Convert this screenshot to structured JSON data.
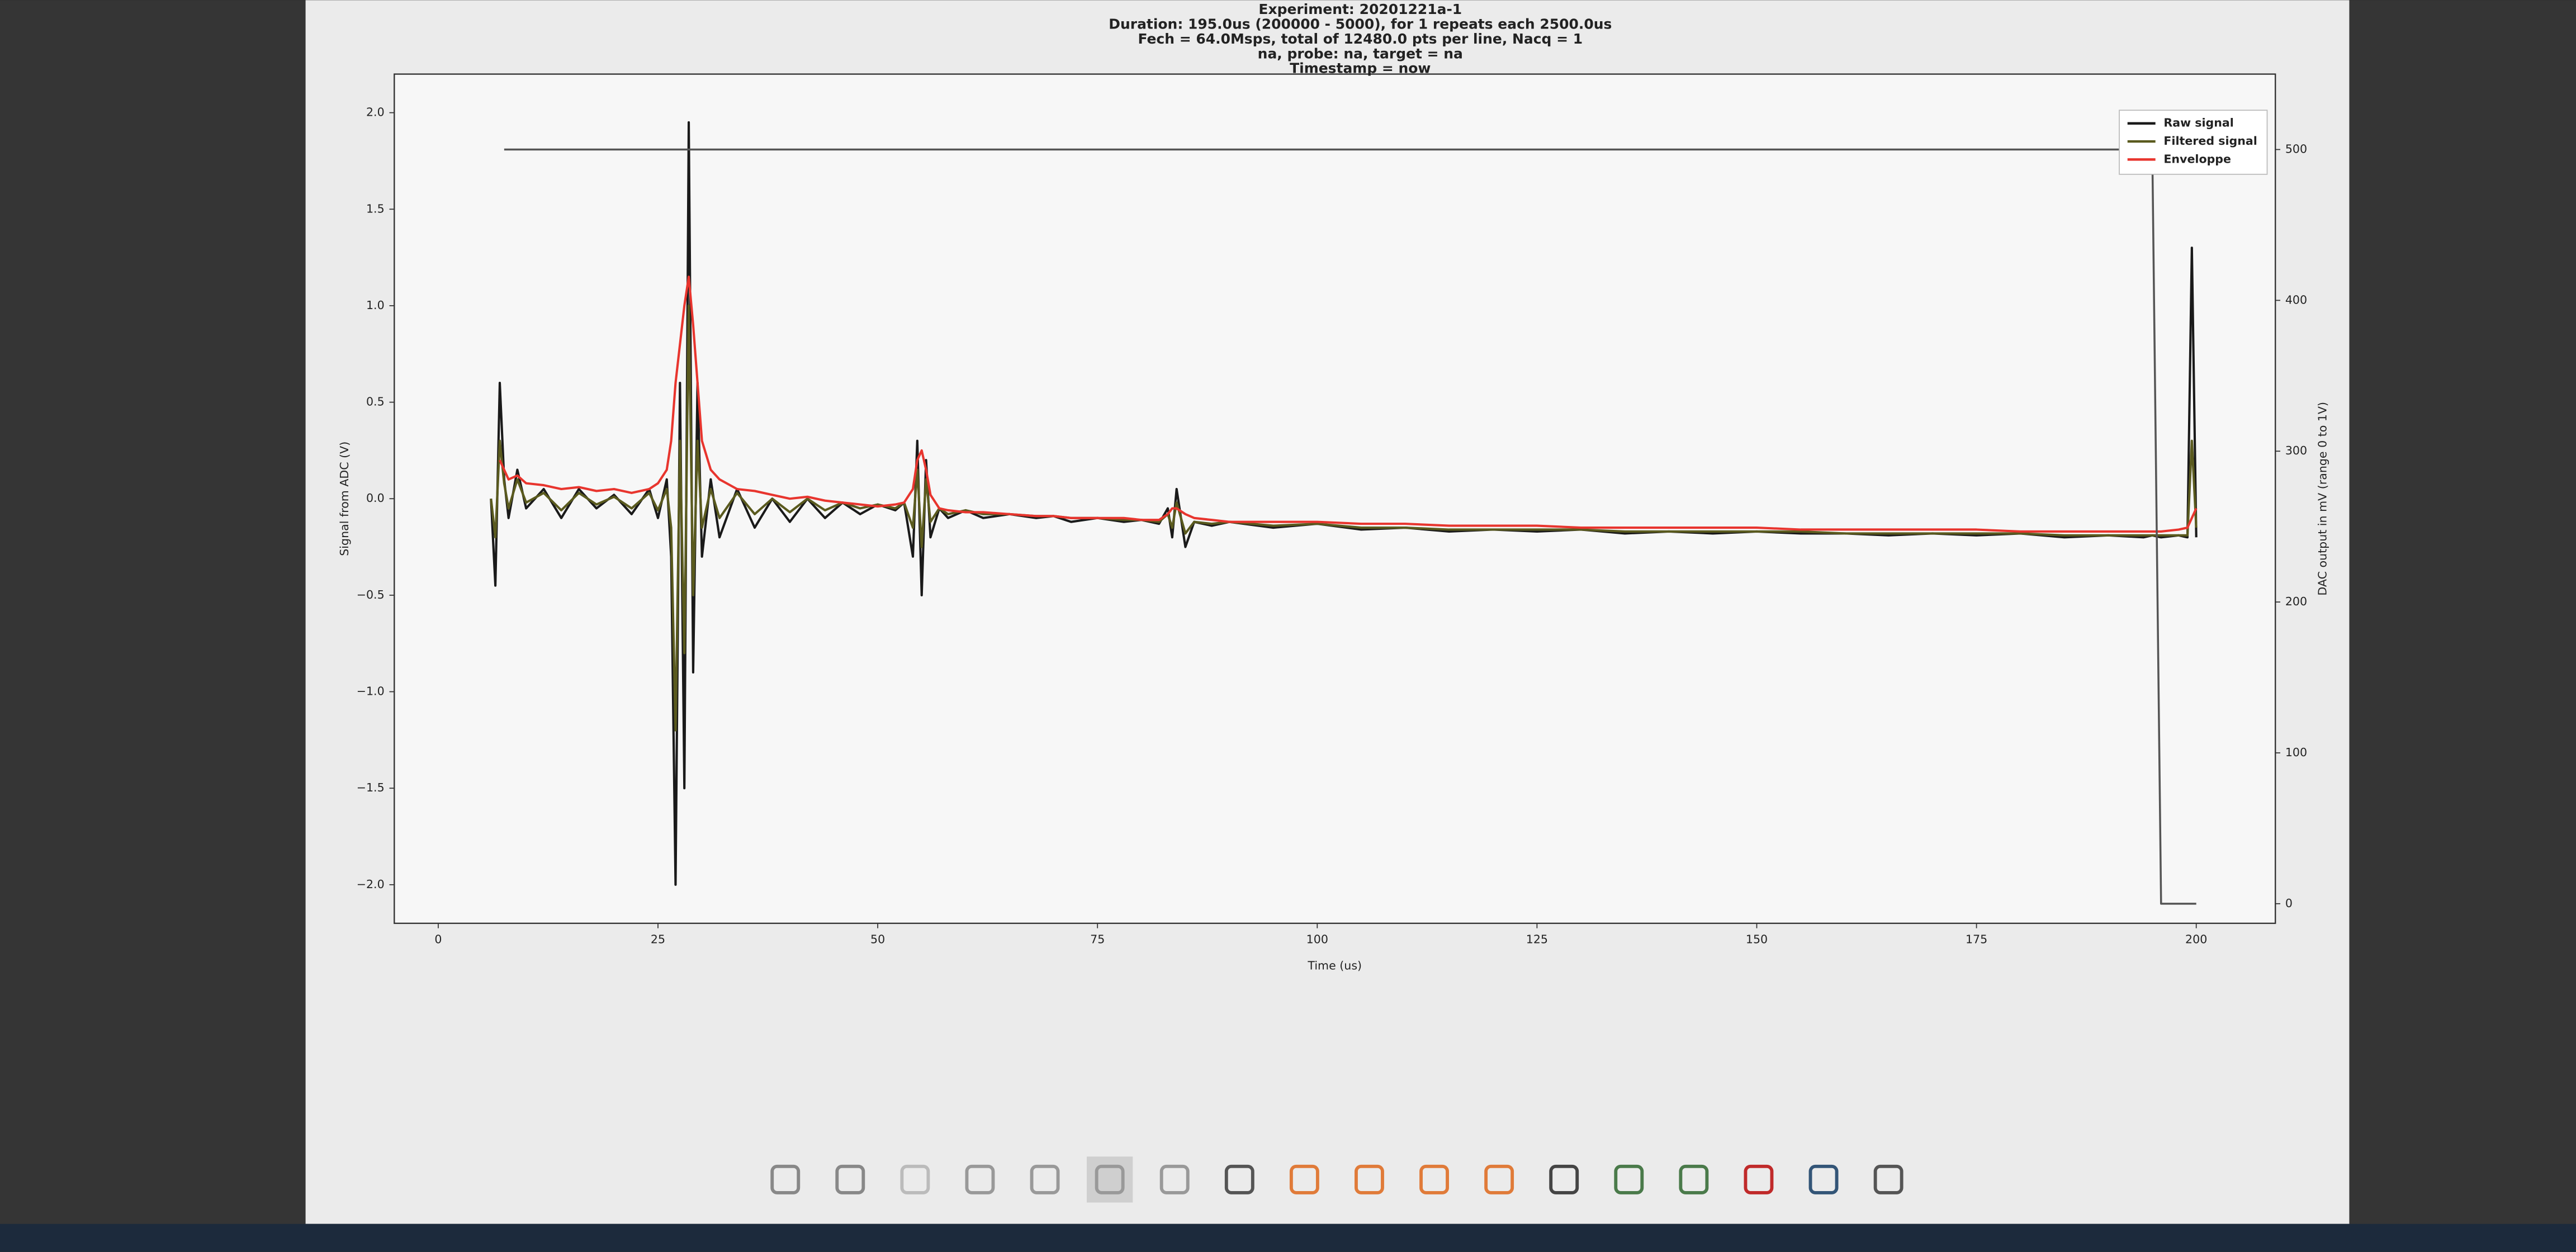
{
  "chart_data": {
    "type": "line",
    "title": [
      "Experiment: 20201221a-1",
      "Duration: 195.0us (200000 - 5000), for 1 repeats each 2500.0us",
      "Fech = 64.0Msps, total of 12480.0 pts per line, Nacq = 1",
      "na, probe: na, target = na",
      "Timestamp = now"
    ],
    "x_label": "Time (us)",
    "y_label": "Signal from ADC (V)",
    "y2_label": "DAC output in mV (range 0 to 1V)",
    "x": [
      6,
      6.5,
      7,
      7.5,
      8,
      9,
      10,
      12,
      14,
      16,
      18,
      20,
      22,
      24,
      25,
      26,
      26.5,
      27,
      27.5,
      28,
      28.5,
      29,
      29.5,
      30,
      31,
      32,
      34,
      36,
      38,
      40,
      42,
      44,
      46,
      48,
      50,
      52,
      53,
      54,
      54.5,
      55,
      55.5,
      56,
      57,
      58,
      60,
      62,
      65,
      68,
      70,
      72,
      75,
      78,
      80,
      82,
      83,
      83.5,
      84,
      85,
      86,
      88,
      90,
      95,
      100,
      105,
      110,
      115,
      120,
      125,
      130,
      135,
      140,
      145,
      150,
      155,
      160,
      165,
      170,
      175,
      180,
      185,
      190,
      194,
      195,
      196,
      198,
      199,
      199.5,
      200
    ],
    "series": [
      {
        "name": "Raw signal",
        "color": "#1a1a1a",
        "values": [
          0,
          -0.45,
          0.6,
          0.1,
          -0.1,
          0.15,
          -0.05,
          0.05,
          -0.1,
          0.05,
          -0.05,
          0.02,
          -0.08,
          0.05,
          -0.1,
          0.1,
          -0.3,
          -2.0,
          0.6,
          -1.5,
          1.95,
          -0.9,
          0.6,
          -0.3,
          0.1,
          -0.2,
          0.05,
          -0.15,
          0,
          -0.12,
          0,
          -0.1,
          -0.02,
          -0.08,
          -0.03,
          -0.06,
          -0.02,
          -0.3,
          0.3,
          -0.5,
          0.2,
          -0.2,
          -0.05,
          -0.1,
          -0.06,
          -0.1,
          -0.08,
          -0.1,
          -0.09,
          -0.12,
          -0.1,
          -0.12,
          -0.11,
          -0.13,
          -0.05,
          -0.2,
          0.05,
          -0.25,
          -0.12,
          -0.14,
          -0.12,
          -0.15,
          -0.13,
          -0.16,
          -0.15,
          -0.17,
          -0.16,
          -0.17,
          -0.16,
          -0.18,
          -0.17,
          -0.18,
          -0.17,
          -0.18,
          -0.18,
          -0.19,
          -0.18,
          -0.19,
          -0.18,
          -0.2,
          -0.19,
          -0.2,
          -0.19,
          -0.2,
          -0.19,
          -0.2,
          1.3,
          -0.2
        ]
      },
      {
        "name": "Filtered signal",
        "color": "#5a5a1e",
        "values": [
          0,
          -0.2,
          0.3,
          0.08,
          -0.05,
          0.1,
          -0.02,
          0.03,
          -0.06,
          0.03,
          -0.03,
          0.01,
          -0.05,
          0.03,
          -0.06,
          0.05,
          -0.15,
          -1.2,
          0.3,
          -0.8,
          1.0,
          -0.5,
          0.3,
          -0.15,
          0.05,
          -0.1,
          0.03,
          -0.08,
          0,
          -0.07,
          0,
          -0.06,
          -0.02,
          -0.05,
          -0.03,
          -0.05,
          -0.02,
          -0.15,
          0.15,
          -0.25,
          0.1,
          -0.12,
          -0.05,
          -0.08,
          -0.06,
          -0.08,
          -0.08,
          -0.09,
          -0.09,
          -0.1,
          -0.1,
          -0.11,
          -0.11,
          -0.12,
          -0.08,
          -0.15,
          -0.02,
          -0.18,
          -0.12,
          -0.13,
          -0.12,
          -0.14,
          -0.13,
          -0.15,
          -0.15,
          -0.16,
          -0.16,
          -0.16,
          -0.16,
          -0.17,
          -0.17,
          -0.17,
          -0.17,
          -0.17,
          -0.18,
          -0.18,
          -0.18,
          -0.18,
          -0.18,
          -0.19,
          -0.19,
          -0.19,
          -0.19,
          -0.19,
          -0.19,
          -0.19,
          0.3,
          -0.15
        ]
      },
      {
        "name": "Enveloppe",
        "color": "#e8352e",
        "values": [
          null,
          null,
          0.2,
          0.15,
          0.1,
          0.12,
          0.08,
          0.07,
          0.05,
          0.06,
          0.04,
          0.05,
          0.03,
          0.05,
          0.08,
          0.15,
          0.3,
          0.6,
          0.8,
          1.0,
          1.15,
          0.9,
          0.6,
          0.3,
          0.15,
          0.1,
          0.05,
          0.04,
          0.02,
          0.0,
          0.01,
          -0.01,
          -0.02,
          -0.03,
          -0.04,
          -0.03,
          -0.02,
          0.05,
          0.2,
          0.25,
          0.15,
          0.02,
          -0.05,
          -0.06,
          -0.07,
          -0.07,
          -0.08,
          -0.09,
          -0.09,
          -0.1,
          -0.1,
          -0.1,
          -0.11,
          -0.11,
          -0.08,
          -0.05,
          -0.05,
          -0.08,
          -0.1,
          -0.11,
          -0.12,
          -0.12,
          -0.12,
          -0.13,
          -0.13,
          -0.14,
          -0.14,
          -0.14,
          -0.15,
          -0.15,
          -0.15,
          -0.15,
          -0.15,
          -0.16,
          -0.16,
          -0.16,
          -0.16,
          -0.16,
          -0.17,
          -0.17,
          -0.17,
          -0.17,
          -0.17,
          -0.17,
          -0.16,
          -0.15,
          -0.1,
          -0.05
        ]
      },
      {
        "color": "#555555",
        "axis": "y2",
        "values": [
          null,
          null,
          null,
          500,
          500,
          500,
          500,
          500,
          500,
          500,
          500,
          500,
          500,
          500,
          500,
          500,
          500,
          500,
          500,
          500,
          500,
          500,
          500,
          500,
          500,
          500,
          500,
          500,
          500,
          500,
          500,
          500,
          500,
          500,
          500,
          500,
          500,
          500,
          500,
          500,
          500,
          500,
          500,
          500,
          500,
          500,
          500,
          500,
          500,
          500,
          500,
          500,
          500,
          500,
          500,
          500,
          500,
          500,
          500,
          500,
          500,
          500,
          500,
          500,
          500,
          500,
          500,
          500,
          500,
          500,
          500,
          500,
          500,
          500,
          500,
          500,
          500,
          500,
          500,
          500,
          500,
          500,
          500,
          0,
          0,
          0,
          0,
          0
        ]
      }
    ],
    "xlim": [
      -5,
      209
    ],
    "xticks": [
      0,
      25,
      50,
      75,
      100,
      125,
      150,
      175,
      200
    ],
    "ylim": [
      -2.2,
      2.2
    ],
    "yticks": [
      {
        "value": -2,
        "label": "−2.0"
      },
      {
        "value": -1.5,
        "label": "−1.5"
      },
      {
        "value": -1,
        "label": "−1.0"
      },
      {
        "value": -0.5,
        "label": "−0.5"
      },
      {
        "value": 0,
        "label": "0.0"
      },
      0.5,
      {
        "value": 1,
        "label": "1.0"
      },
      1.5,
      {
        "value": 2,
        "label": "2.0"
      }
    ],
    "y2lim": [
      -13,
      550
    ],
    "y2ticks": [
      0,
      100,
      200,
      300,
      400,
      500
    ],
    "legend": "upper right"
  }
}
